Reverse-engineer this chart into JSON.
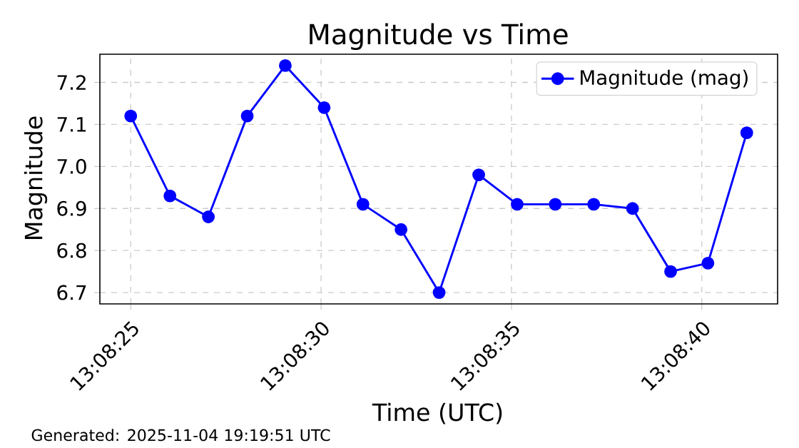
{
  "chart_data": {
    "type": "line",
    "title": "Magnitude vs Time",
    "xlabel": "Time (UTC)",
    "ylabel": "Magnitude",
    "annotations": [
      "Generated: 2025-11-04 19:19:51 UTC"
    ],
    "x": [
      13.1402778,
      13.1405639,
      13.1408444,
      13.1411278,
      13.1414056,
      13.1416889,
      13.1419722,
      13.14225,
      13.1425278,
      13.1428167,
      13.1430972,
      13.143375,
      13.1436556,
      13.1439389,
      13.1442167,
      13.1444889,
      13.1447722
    ],
    "series": [
      {
        "name": "Magnitude (mag)",
        "color": "#0000ff",
        "values": [
          7.12,
          6.93,
          6.88,
          7.12,
          7.24,
          7.14,
          6.91,
          6.85,
          6.7,
          6.98,
          6.91,
          6.91,
          6.91,
          6.9,
          6.75,
          6.77,
          7.08
        ]
      }
    ],
    "xlim": [
      13.1400528,
      13.1449972
    ],
    "xticks": [
      {
        "value": 13.1402778,
        "label": "13:08:25"
      },
      {
        "value": 13.1416667,
        "label": "13:08:30"
      },
      {
        "value": 13.1430556,
        "label": "13:08:35"
      },
      {
        "value": 13.1444444,
        "label": "13:08:40"
      }
    ],
    "ylim": [
      6.673,
      7.267
    ],
    "yticks": [
      6.7,
      6.8,
      6.9,
      {
        "value": 7.0,
        "label": "7.0"
      },
      7.1,
      7.2
    ],
    "grid": true,
    "legend": "top right",
    "marker": "circle",
    "line_style": "solid"
  }
}
